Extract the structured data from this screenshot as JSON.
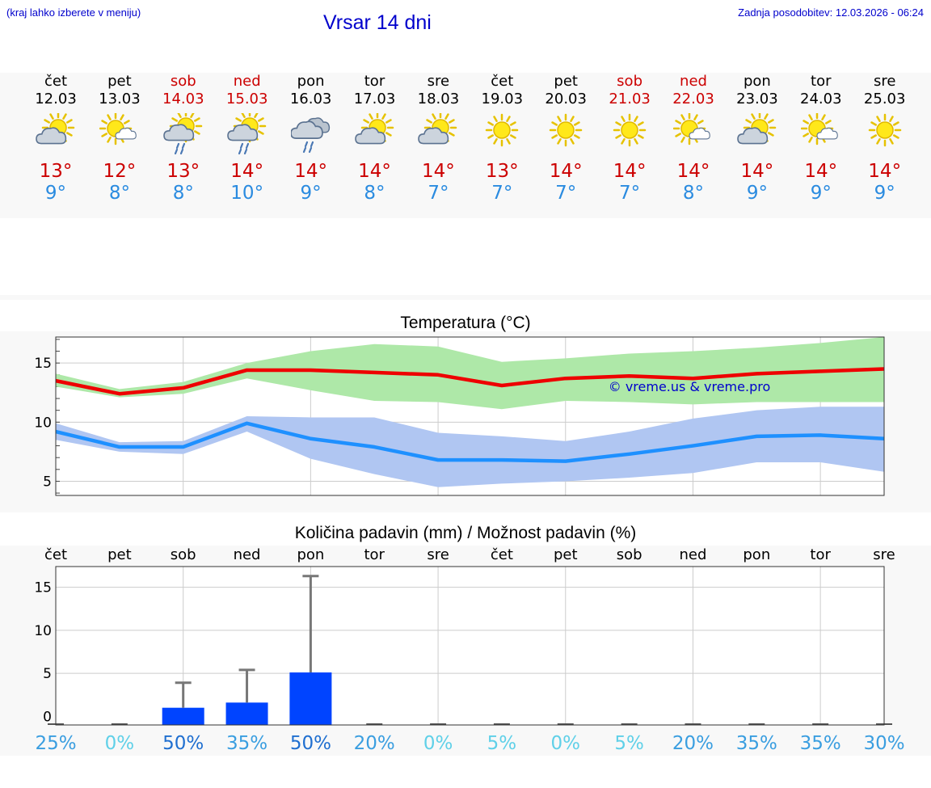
{
  "header": {
    "hint": "(kraj lahko izberete v meniju)",
    "title": "Vrsar 14 dni",
    "updated": "Zadnja posodobitev: 12.03.2026 - 06:24"
  },
  "days": [
    {
      "name": "čet",
      "date": "12.03",
      "weekend": false,
      "icon": "partly-cloudy-icon",
      "max": "13°",
      "min": "9°"
    },
    {
      "name": "pet",
      "date": "13.03",
      "weekend": false,
      "icon": "sun-small-cloud-icon",
      "max": "12°",
      "min": "8°"
    },
    {
      "name": "sob",
      "date": "14.03",
      "weekend": true,
      "icon": "partly-cloudy-rain-icon",
      "max": "13°",
      "min": "8°"
    },
    {
      "name": "ned",
      "date": "15.03",
      "weekend": true,
      "icon": "partly-cloudy-rain-icon",
      "max": "14°",
      "min": "10°"
    },
    {
      "name": "pon",
      "date": "16.03",
      "weekend": false,
      "icon": "cloudy-rain-icon",
      "max": "14°",
      "min": "9°"
    },
    {
      "name": "tor",
      "date": "17.03",
      "weekend": false,
      "icon": "partly-cloudy-icon",
      "max": "14°",
      "min": "8°"
    },
    {
      "name": "sre",
      "date": "18.03",
      "weekend": false,
      "icon": "partly-cloudy-icon",
      "max": "14°",
      "min": "7°"
    },
    {
      "name": "čet",
      "date": "19.03",
      "weekend": false,
      "icon": "sun-icon",
      "max": "13°",
      "min": "7°"
    },
    {
      "name": "pet",
      "date": "20.03",
      "weekend": false,
      "icon": "sun-icon",
      "max": "14°",
      "min": "7°"
    },
    {
      "name": "sob",
      "date": "21.03",
      "weekend": true,
      "icon": "sun-icon",
      "max": "14°",
      "min": "7°"
    },
    {
      "name": "ned",
      "date": "22.03",
      "weekend": true,
      "icon": "sun-small-cloud-icon",
      "max": "14°",
      "min": "8°"
    },
    {
      "name": "pon",
      "date": "23.03",
      "weekend": false,
      "icon": "partly-cloudy-icon",
      "max": "14°",
      "min": "9°"
    },
    {
      "name": "tor",
      "date": "24.03",
      "weekend": false,
      "icon": "sun-small-cloud-icon",
      "max": "14°",
      "min": "9°"
    },
    {
      "name": "sre",
      "date": "25.03",
      "weekend": false,
      "icon": "sun-icon",
      "max": "14°",
      "min": "9°"
    }
  ],
  "colors": {
    "max_line": "#ee0000",
    "max_band": "#aee8a8",
    "min_line": "#1e90ff",
    "min_band": "#b0c6f2",
    "bar": "#0044ff",
    "whisker": "#777777",
    "title": "#0000cc",
    "weekend": "#cc0000",
    "tmin": "#2a8be0"
  },
  "chart_data": [
    {
      "type": "line",
      "title": "Temperatura (°C)",
      "watermark": "© vreme.us & vreme.pro",
      "x": [
        "12.03",
        "13.03",
        "14.03",
        "15.03",
        "16.03",
        "17.03",
        "18.03",
        "19.03",
        "20.03",
        "21.03",
        "22.03",
        "23.03",
        "24.03",
        "25.03"
      ],
      "ylim": [
        3.8,
        17.2
      ],
      "yticks": [
        5,
        10,
        15
      ],
      "grid": true,
      "series": [
        {
          "name": "max",
          "values": [
            13.5,
            12.4,
            12.9,
            14.4,
            14.4,
            14.2,
            14.0,
            13.1,
            13.7,
            13.9,
            13.7,
            14.1,
            14.3,
            14.5
          ],
          "band_low": [
            13.0,
            12.1,
            12.4,
            13.7,
            12.7,
            11.8,
            11.7,
            11.1,
            11.8,
            11.7,
            11.5,
            11.7,
            11.7,
            11.7
          ],
          "band_high": [
            14.1,
            12.8,
            13.4,
            15.0,
            16.0,
            16.6,
            16.4,
            15.1,
            15.4,
            15.8,
            16.0,
            16.3,
            16.7,
            17.3
          ]
        },
        {
          "name": "min",
          "values": [
            9.2,
            7.9,
            7.9,
            9.9,
            8.6,
            7.9,
            6.8,
            6.8,
            6.7,
            7.3,
            8.0,
            8.8,
            8.9,
            8.6
          ],
          "band_low": [
            8.5,
            7.5,
            7.3,
            9.2,
            6.9,
            5.6,
            4.5,
            4.8,
            5.0,
            5.3,
            5.7,
            6.6,
            6.6,
            5.8
          ],
          "band_high": [
            9.9,
            8.3,
            8.4,
            10.5,
            10.4,
            10.4,
            9.1,
            8.8,
            8.4,
            9.2,
            10.3,
            11.0,
            11.3,
            11.3
          ]
        }
      ]
    },
    {
      "type": "bar",
      "title": "Količina padavin (mm) / Možnost padavin (%)",
      "categories": [
        "čet",
        "pet",
        "sob",
        "ned",
        "pon",
        "tor",
        "sre",
        "čet",
        "pet",
        "sob",
        "ned",
        "pon",
        "tor",
        "sre"
      ],
      "values": [
        0,
        0,
        1.0,
        1.6,
        5.1,
        0,
        0,
        0,
        0,
        0,
        0,
        0,
        0,
        0
      ],
      "whisker_high": [
        0,
        0,
        3.9,
        5.4,
        16.3,
        0,
        0,
        0,
        0,
        0,
        0,
        0,
        0,
        0
      ],
      "ylim": [
        -1.0,
        17.4
      ],
      "yticks": [
        0,
        5,
        10,
        15
      ],
      "probability": [
        "25%",
        "0%",
        "50%",
        "35%",
        "50%",
        "20%",
        "0%",
        "5%",
        "0%",
        "5%",
        "20%",
        "35%",
        "35%",
        "30%"
      ],
      "probability_colors": [
        "#3a9ee0",
        "#5fd0e8",
        "#1f6fd0",
        "#3a9ee0",
        "#1f6fd0",
        "#3a9ee0",
        "#5fd0e8",
        "#5fd0e8",
        "#5fd0e8",
        "#5fd0e8",
        "#3a9ee0",
        "#3a9ee0",
        "#3a9ee0",
        "#3a9ee0"
      ]
    }
  ]
}
